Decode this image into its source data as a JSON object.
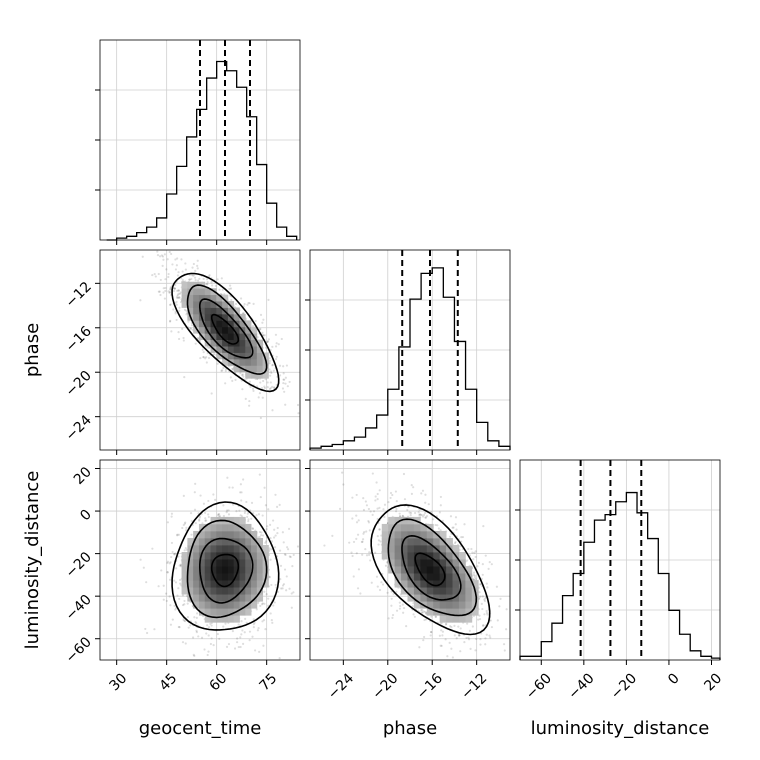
{
  "chart_data": {
    "type": "corner",
    "parameters": [
      "geocent_time",
      "phase",
      "luminosity_distance"
    ],
    "ranges": {
      "geocent_time": [
        25,
        85
      ],
      "phase": [
        -27,
        -9
      ],
      "luminosity_distance": [
        -70,
        24
      ]
    },
    "ticks": {
      "geocent_time": [
        30,
        45,
        60,
        75
      ],
      "phase": [
        -24,
        -20,
        -16,
        -12
      ],
      "luminosity_distance": [
        -60,
        -40,
        -20,
        0,
        20
      ]
    },
    "tick_labels": {
      "geocent_time": [
        "30",
        "45",
        "60",
        "75"
      ],
      "phase": [
        "−24",
        "−20",
        "−16",
        "−12"
      ],
      "luminosity_distance": [
        "−60",
        "−40",
        "−20",
        "0",
        "20"
      ]
    },
    "axis_labels": {
      "geocent_time": "geocent_time",
      "phase": "phase",
      "luminosity_distance": "luminosity_distance"
    },
    "quantiles": {
      "geocent_time": [
        55.0,
        62.5,
        70.0
      ],
      "phase": [
        -18.7,
        -16.2,
        -13.7
      ],
      "luminosity_distance": [
        -41.5,
        -27.5,
        -13.0
      ]
    },
    "histograms": {
      "geocent_time": {
        "edges": [
          27,
          30,
          33,
          36,
          39,
          42,
          45,
          48,
          51,
          54,
          57,
          60,
          63,
          66,
          69,
          72,
          75,
          78,
          81,
          84
        ],
        "counts": [
          0,
          0.01,
          0.02,
          0.04,
          0.07,
          0.12,
          0.25,
          0.4,
          0.56,
          0.71,
          0.88,
          0.97,
          0.92,
          0.83,
          0.67,
          0.41,
          0.2,
          0.07,
          0.02
        ]
      },
      "phase": {
        "edges": [
          -27,
          -26,
          -25,
          -24,
          -23,
          -22,
          -21,
          -20,
          -19,
          -18,
          -17,
          -16,
          -15,
          -14,
          -13,
          -12,
          -11,
          -10,
          -9
        ],
        "counts": [
          0.01,
          0.02,
          0.03,
          0.05,
          0.07,
          0.12,
          0.19,
          0.33,
          0.56,
          0.82,
          0.96,
          0.99,
          0.83,
          0.59,
          0.33,
          0.15,
          0.05,
          0.02
        ]
      },
      "luminosity_distance": {
        "edges": [
          -70,
          -65,
          -60,
          -55,
          -50,
          -45,
          -40,
          -35,
          -30,
          -25,
          -20,
          -15,
          -10,
          -5,
          0,
          5,
          10,
          15,
          20,
          24
        ],
        "counts": [
          0.02,
          0.02,
          0.1,
          0.2,
          0.35,
          0.47,
          0.64,
          0.76,
          0.79,
          0.86,
          0.91,
          0.8,
          0.66,
          0.47,
          0.27,
          0.14,
          0.05,
          0.02,
          0.01
        ]
      }
    },
    "correlations": {
      "phase_vs_geocent_time": -0.75,
      "luminosity_distance_vs_geocent_time": 0.05,
      "luminosity_distance_vs_phase": -0.55
    },
    "contour_levels": [
      0.5,
      1.0,
      1.5,
      2.0
    ],
    "grid": true
  }
}
